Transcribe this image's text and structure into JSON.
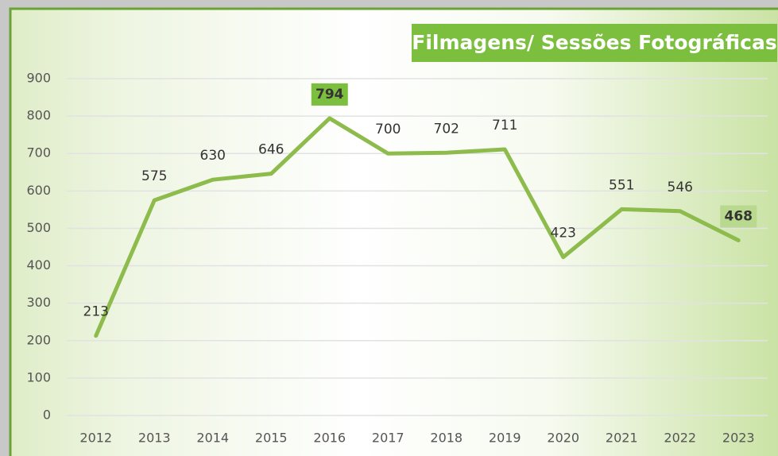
{
  "chart_data": {
    "type": "line",
    "title": "Filmagens/ Sessões Fotográficas",
    "categories": [
      "2012",
      "2013",
      "2014",
      "2015",
      "2016",
      "2017",
      "2018",
      "2019",
      "2020",
      "2021",
      "2022",
      "2023"
    ],
    "series": [
      {
        "name": "Filmagens/ Sessões Fotográficas",
        "color": "#8dbb4c",
        "values": [
          213,
          575,
          630,
          646,
          794,
          700,
          702,
          711,
          423,
          551,
          546,
          468
        ]
      }
    ],
    "label_backgrounds": [
      null,
      null,
      null,
      null,
      "#7cbf3f",
      null,
      null,
      null,
      null,
      null,
      null,
      "#b9d98f"
    ],
    "ylim": [
      0,
      900
    ],
    "yticks": [
      0,
      100,
      200,
      300,
      400,
      500,
      600,
      700,
      800,
      900
    ],
    "grid": true
  }
}
